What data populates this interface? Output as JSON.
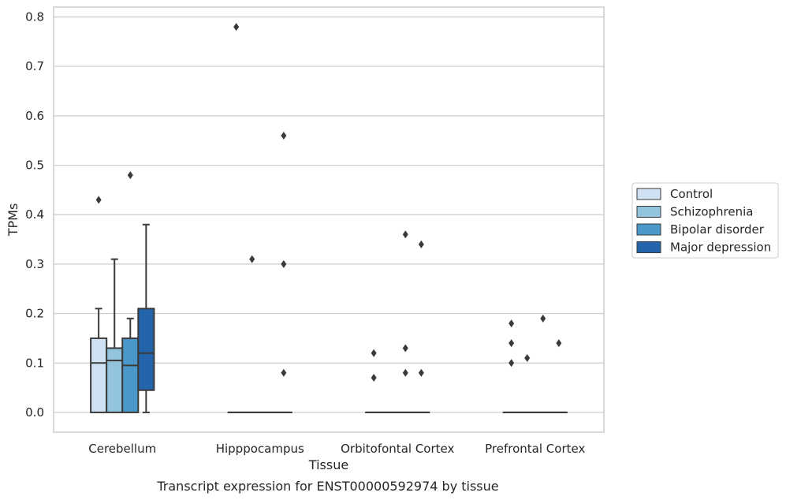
{
  "chart_data": {
    "type": "box",
    "xlabel": "Tissue",
    "ylabel": "TPMs",
    "caption": "Transcript expression for ENST00000592974 by tissue",
    "ylim": [
      -0.04,
      0.82
    ],
    "yticks": [
      0.0,
      0.1,
      0.2,
      0.3,
      0.4,
      0.5,
      0.6,
      0.7,
      0.8
    ],
    "ytick_labels": [
      "0.0",
      "0.1",
      "0.2",
      "0.3",
      "0.4",
      "0.5",
      "0.6",
      "0.7",
      "0.8"
    ],
    "grid": true,
    "legend_position": "right",
    "categories": [
      "Cerebellum",
      "Hipppocampus",
      "Orbitofontal Cortex",
      "Prefrontal Cortex"
    ],
    "series": [
      {
        "name": "Control",
        "color": "#cfe1f2",
        "boxes": [
          {
            "q1": 0.0,
            "median": 0.1,
            "q3": 0.15,
            "whisker_low": 0.0,
            "whisker_high": 0.21,
            "outliers": [
              0.43
            ]
          },
          {
            "q1": 0.0,
            "median": 0.0,
            "q3": 0.0,
            "whisker_low": 0.0,
            "whisker_high": 0.0,
            "outliers": [
              0.78
            ]
          },
          {
            "q1": 0.0,
            "median": 0.0,
            "q3": 0.0,
            "whisker_low": 0.0,
            "whisker_high": 0.0,
            "outliers": [
              0.12,
              0.07
            ]
          },
          {
            "q1": 0.0,
            "median": 0.0,
            "q3": 0.0,
            "whisker_low": 0.0,
            "whisker_high": 0.0,
            "outliers": [
              0.18,
              0.14,
              0.1
            ]
          }
        ]
      },
      {
        "name": "Schizophrenia",
        "color": "#93c4de",
        "boxes": [
          {
            "q1": 0.0,
            "median": 0.105,
            "q3": 0.13,
            "whisker_low": 0.0,
            "whisker_high": 0.31,
            "outliers": []
          },
          {
            "q1": 0.0,
            "median": 0.0,
            "q3": 0.0,
            "whisker_low": 0.0,
            "whisker_high": 0.0,
            "outliers": [
              0.31
            ]
          },
          {
            "q1": 0.0,
            "median": 0.0,
            "q3": 0.0,
            "whisker_low": 0.0,
            "whisker_high": 0.0,
            "outliers": []
          },
          {
            "q1": 0.0,
            "median": 0.0,
            "q3": 0.0,
            "whisker_low": 0.0,
            "whisker_high": 0.0,
            "outliers": [
              0.11
            ]
          }
        ]
      },
      {
        "name": "Bipolar disorder",
        "color": "#4a98c9",
        "boxes": [
          {
            "q1": 0.0,
            "median": 0.095,
            "q3": 0.15,
            "whisker_low": 0.0,
            "whisker_high": 0.19,
            "outliers": [
              0.48
            ]
          },
          {
            "q1": 0.0,
            "median": 0.0,
            "q3": 0.0,
            "whisker_low": 0.0,
            "whisker_high": 0.0,
            "outliers": []
          },
          {
            "q1": 0.0,
            "median": 0.0,
            "q3": 0.0,
            "whisker_low": 0.0,
            "whisker_high": 0.0,
            "outliers": [
              0.36,
              0.13,
              0.08
            ]
          },
          {
            "q1": 0.0,
            "median": 0.0,
            "q3": 0.0,
            "whisker_low": 0.0,
            "whisker_high": 0.0,
            "outliers": [
              0.19
            ]
          }
        ]
      },
      {
        "name": "Major depression",
        "color": "#2364aa",
        "boxes": [
          {
            "q1": 0.045,
            "median": 0.12,
            "q3": 0.21,
            "whisker_low": 0.0,
            "whisker_high": 0.38,
            "outliers": []
          },
          {
            "q1": 0.0,
            "median": 0.0,
            "q3": 0.0,
            "whisker_low": 0.0,
            "whisker_high": 0.0,
            "outliers": [
              0.56,
              0.3,
              0.08
            ]
          },
          {
            "q1": 0.0,
            "median": 0.0,
            "q3": 0.0,
            "whisker_low": 0.0,
            "whisker_high": 0.0,
            "outliers": [
              0.34,
              0.08
            ]
          },
          {
            "q1": 0.0,
            "median": 0.0,
            "q3": 0.0,
            "whisker_low": 0.0,
            "whisker_high": 0.0,
            "outliers": [
              0.14
            ]
          }
        ]
      }
    ]
  }
}
